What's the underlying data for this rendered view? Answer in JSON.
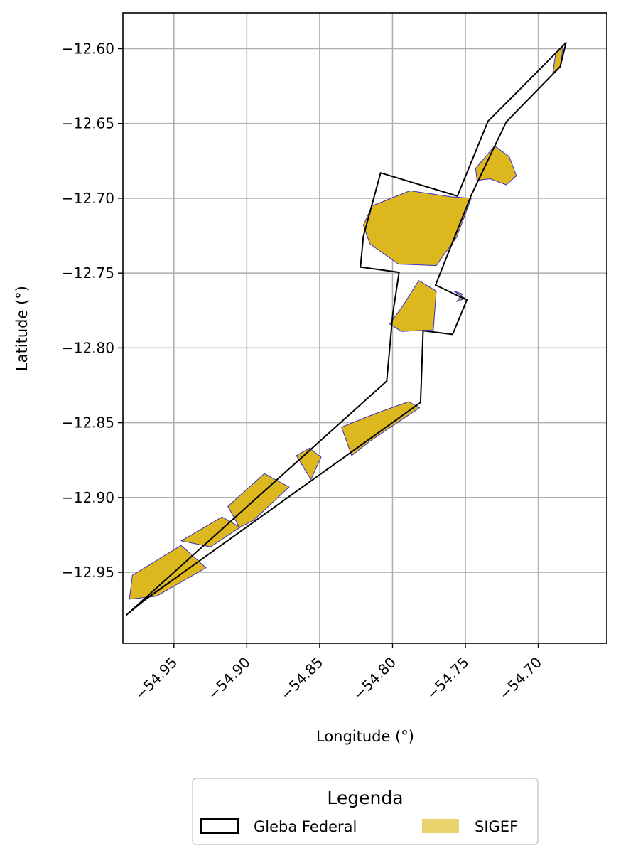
{
  "chart_data": {
    "type": "map",
    "xlabel": "Longitude (°)",
    "ylabel": "Latitude (°)",
    "xlim": [
      -54.985,
      -54.653
    ],
    "ylim": [
      -12.9975,
      -12.576
    ],
    "x_ticks": [
      -54.95,
      -54.9,
      -54.85,
      -54.8,
      -54.75,
      -54.7
    ],
    "x_tick_labels": [
      "−54.95",
      "−54.90",
      "−54.85",
      "−54.80",
      "−54.75",
      "−54.70"
    ],
    "y_ticks": [
      -12.6,
      -12.65,
      -12.7,
      -12.75,
      -12.8,
      -12.85,
      -12.9,
      -12.95
    ],
    "y_tick_labels": [
      "−12.60",
      "−12.65",
      "−12.70",
      "−12.75",
      "−12.80",
      "−12.85",
      "−12.90",
      "−12.95"
    ],
    "grid": true,
    "legend": {
      "title": "Legenda",
      "placement": "bottom-center",
      "entries": [
        {
          "label": "Gleba Federal",
          "style": "outline",
          "color": "#000000"
        },
        {
          "label": "SIGEF",
          "style": "fill",
          "color": "#e8d36f"
        }
      ]
    },
    "colors": {
      "gleba_outline": "#000000",
      "sigef_fill": "#dcb81e",
      "sigef_edge": "#3a2ccc",
      "grid": "#b0b0b0"
    },
    "gleba_federal": [
      [
        -54.9825,
        -12.9785
      ],
      [
        -54.804,
        -12.8222
      ],
      [
        -54.7998,
        -12.777
      ],
      [
        -54.7955,
        -12.7495
      ],
      [
        -54.822,
        -12.746
      ],
      [
        -54.82,
        -12.7255
      ],
      [
        -54.8082,
        -12.683
      ],
      [
        -54.7555,
        -12.6985
      ],
      [
        -54.7345,
        -12.6485
      ],
      [
        -54.713,
        -12.6275
      ],
      [
        -54.681,
        -12.596
      ],
      [
        -54.685,
        -12.612
      ],
      [
        -54.722,
        -12.649
      ],
      [
        -54.746,
        -12.698
      ],
      [
        -54.7705,
        -12.758
      ],
      [
        -54.749,
        -12.768
      ],
      [
        -54.7588,
        -12.791
      ],
      [
        -54.779,
        -12.7885
      ],
      [
        -54.7808,
        -12.8365
      ],
      [
        -54.97,
        -12.9685
      ]
    ],
    "sigef_parcels": [
      [
        [
          -54.9785,
          -12.952
        ],
        [
          -54.945,
          -12.932
        ],
        [
          -54.928,
          -12.947
        ],
        [
          -54.962,
          -12.966
        ],
        [
          -54.9805,
          -12.968
        ]
      ],
      [
        [
          -54.945,
          -12.929
        ],
        [
          -54.917,
          -12.913
        ],
        [
          -54.9045,
          -12.92
        ],
        [
          -54.925,
          -12.933
        ]
      ],
      [
        [
          -54.913,
          -12.906
        ],
        [
          -54.888,
          -12.884
        ],
        [
          -54.871,
          -12.893
        ],
        [
          -54.895,
          -12.915
        ],
        [
          -54.905,
          -12.92
        ]
      ],
      [
        [
          -54.866,
          -12.872
        ],
        [
          -54.857,
          -12.867
        ],
        [
          -54.849,
          -12.873
        ],
        [
          -54.856,
          -12.888
        ]
      ],
      [
        [
          -54.835,
          -12.853
        ],
        [
          -54.812,
          -12.844
        ],
        [
          -54.789,
          -12.836
        ],
        [
          -54.7815,
          -12.84
        ],
        [
          -54.815,
          -12.862
        ],
        [
          -54.828,
          -12.872
        ]
      ],
      [
        [
          -54.8155,
          -12.7305
        ],
        [
          -54.82,
          -12.718
        ],
        [
          -54.814,
          -12.705
        ],
        [
          -54.788,
          -12.695
        ],
        [
          -54.76,
          -12.699
        ],
        [
          -54.746,
          -12.7
        ],
        [
          -54.756,
          -12.726
        ],
        [
          -54.77,
          -12.745
        ],
        [
          -54.796,
          -12.744
        ]
      ],
      [
        [
          -54.782,
          -12.755
        ],
        [
          -54.77,
          -12.762
        ],
        [
          -54.772,
          -12.788
        ],
        [
          -54.794,
          -12.789
        ],
        [
          -54.802,
          -12.784
        ],
        [
          -54.793,
          -12.772
        ]
      ],
      [
        [
          -54.758,
          -12.762
        ],
        [
          -54.752,
          -12.764
        ],
        [
          -54.756,
          -12.769
        ],
        [
          -54.75,
          -12.767
        ]
      ],
      [
        [
          -54.743,
          -12.68
        ],
        [
          -54.73,
          -12.665
        ],
        [
          -54.72,
          -12.672
        ],
        [
          -54.715,
          -12.685
        ],
        [
          -54.722,
          -12.691
        ],
        [
          -54.733,
          -12.687
        ],
        [
          -54.742,
          -12.688
        ]
      ],
      [
        [
          -54.685,
          -12.612
        ],
        [
          -54.683,
          -12.599
        ],
        [
          -54.688,
          -12.603
        ],
        [
          -54.69,
          -12.616
        ]
      ]
    ]
  }
}
